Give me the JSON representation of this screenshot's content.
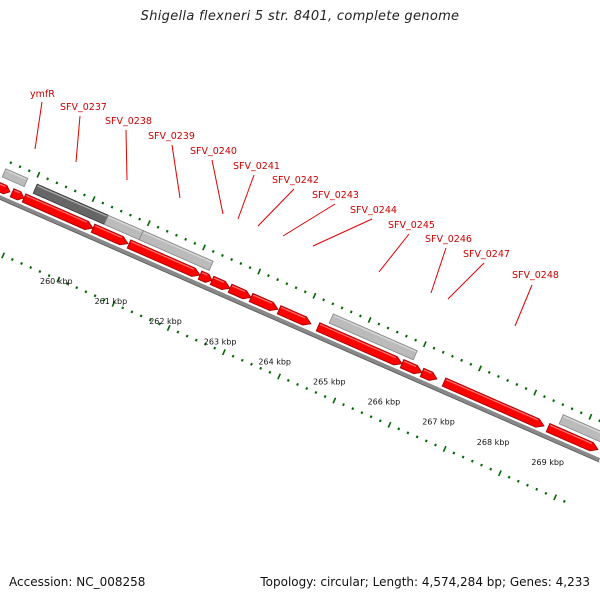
{
  "title": "Shigella flexneri 5 str. 8401, complete genome",
  "footer": {
    "accession": "Accession: NC_008258",
    "summary": "Topology: circular; Length: 4,574,284 bp; Genes: 4,233"
  },
  "colors": {
    "gene_forward": "#ff0000",
    "gene_grey": "#bbbbbb",
    "gene_dark": "#666666",
    "backbone": "#888888",
    "tick": "#006600",
    "label": "#cc0000"
  },
  "genes": [
    {
      "id": "ymfR"
    },
    {
      "id": "SFV_0237"
    },
    {
      "id": "SFV_0238"
    },
    {
      "id": "SFV_0239"
    },
    {
      "id": "SFV_0240"
    },
    {
      "id": "SFV_0241"
    },
    {
      "id": "SFV_0242"
    },
    {
      "id": "SFV_0243"
    },
    {
      "id": "SFV_0244"
    },
    {
      "id": "SFV_0245"
    },
    {
      "id": "SFV_0246"
    },
    {
      "id": "SFV_0247"
    },
    {
      "id": "SFV_0248"
    }
  ],
  "scale_labels": [
    "260 kbp",
    "261 kbp",
    "262 kbp",
    "263 kbp",
    "264 kbp",
    "265 kbp",
    "266 kbp",
    "267 kbp",
    "268 kbp",
    "269 kbp"
  ]
}
